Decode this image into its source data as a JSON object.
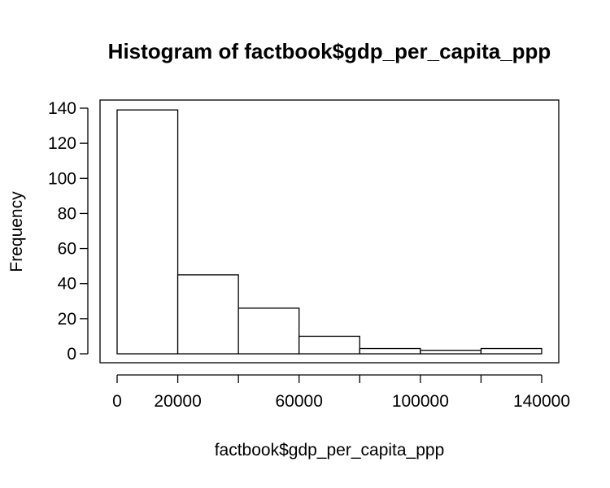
{
  "chart_data": {
    "type": "bar",
    "title": "Histogram of factbook$gdp_per_capita_ppp",
    "xlabel": "factbook$gdp_per_capita_ppp",
    "ylabel": "Frequency",
    "bins": [
      {
        "start": 0,
        "end": 20000,
        "count": 139
      },
      {
        "start": 20000,
        "end": 40000,
        "count": 45
      },
      {
        "start": 40000,
        "end": 60000,
        "count": 26
      },
      {
        "start": 60000,
        "end": 80000,
        "count": 10
      },
      {
        "start": 80000,
        "end": 100000,
        "count": 3
      },
      {
        "start": 100000,
        "end": 120000,
        "count": 2
      },
      {
        "start": 120000,
        "end": 140000,
        "count": 3
      }
    ],
    "xlim": [
      0,
      140000
    ],
    "ylim": [
      0,
      140
    ],
    "x_ticks": [
      0,
      20000,
      40000,
      60000,
      80000,
      100000,
      120000,
      140000
    ],
    "x_tick_labels": [
      "0",
      "20000",
      "",
      "60000",
      "",
      "100000",
      "",
      "140000"
    ],
    "y_ticks": [
      0,
      20,
      40,
      60,
      80,
      100,
      120,
      140
    ],
    "y_tick_labels": [
      "0",
      "20",
      "40",
      "60",
      "80",
      "100",
      "120",
      "140"
    ],
    "grid": false,
    "colors": {
      "bar_fill": "#ffffff",
      "bar_stroke": "#000000",
      "background": "#ffffff"
    }
  }
}
